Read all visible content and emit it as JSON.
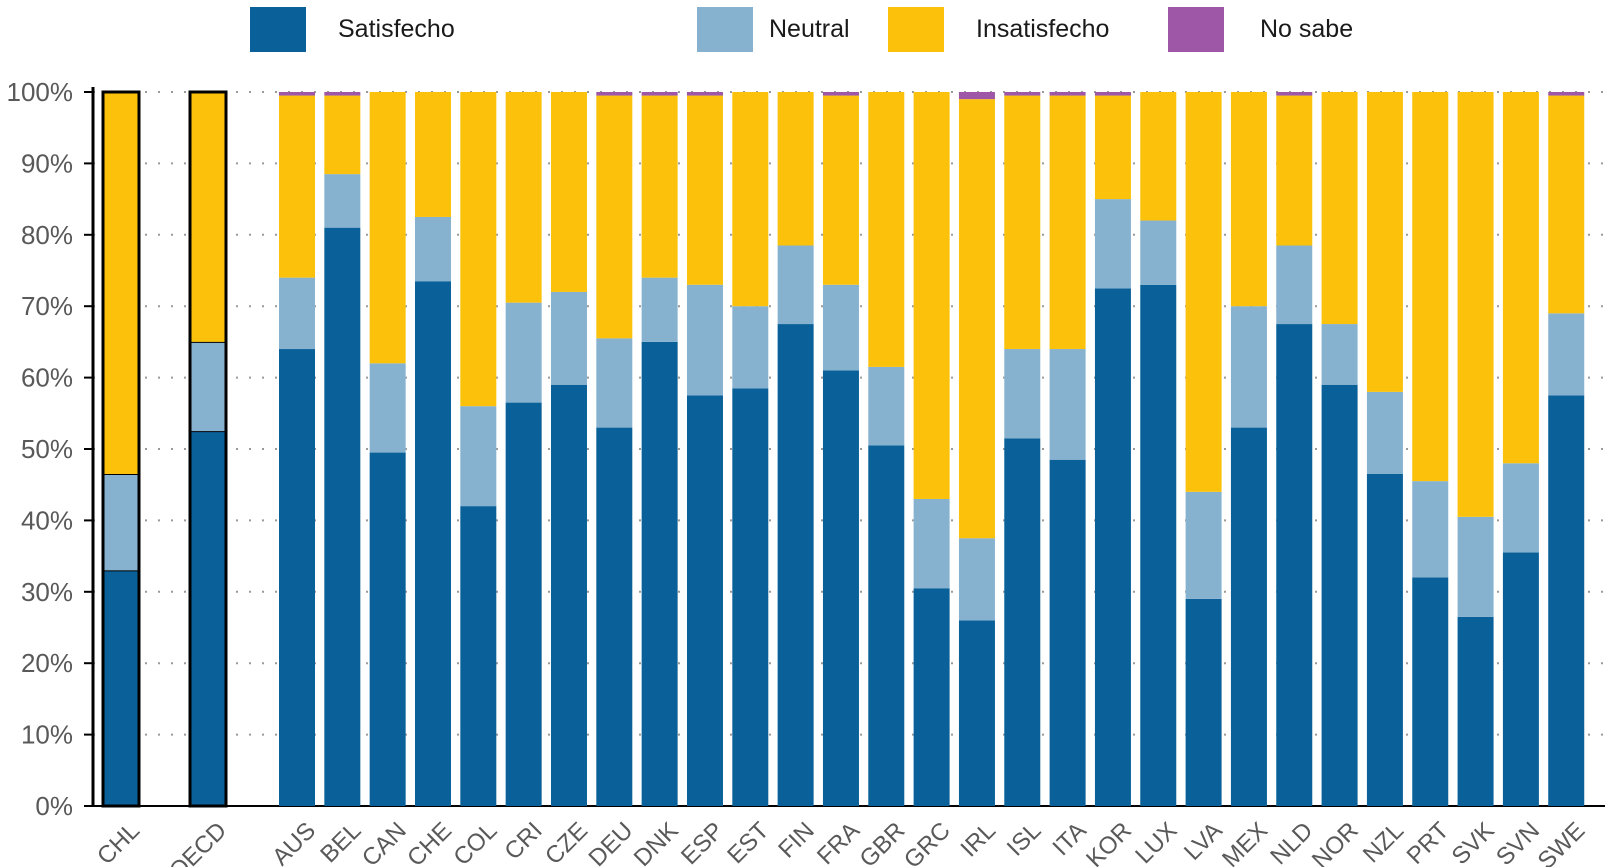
{
  "chart_data": {
    "type": "bar",
    "stacked": true,
    "normalized": true,
    "categories": [
      "CHL",
      "OECD",
      "AUS",
      "BEL",
      "CAN",
      "CHE",
      "COL",
      "CRI",
      "CZE",
      "DEU",
      "DNK",
      "ESP",
      "EST",
      "FIN",
      "FRA",
      "GBR",
      "GRC",
      "IRL",
      "ISL",
      "ITA",
      "KOR",
      "LUX",
      "LVA",
      "MEX",
      "NLD",
      "NOR",
      "NZL",
      "PRT",
      "SVK",
      "SVN",
      "SWE"
    ],
    "highlighted_categories": [
      "CHL",
      "OECD"
    ],
    "series": [
      {
        "name": "Satisfecho",
        "color": "#0a6199",
        "values": [
          33,
          52.5,
          64,
          81,
          49.5,
          73.5,
          42,
          56.5,
          59,
          53,
          65,
          57.5,
          58.5,
          67.5,
          61,
          50.5,
          30.5,
          26,
          51.5,
          48.5,
          72.5,
          73,
          29,
          53,
          67.5,
          59,
          46.5,
          32,
          26.5,
          35.5,
          57.5
        ]
      },
      {
        "name": "Neutral",
        "color": "#86b2d0",
        "values": [
          13.5,
          12.5,
          10,
          7.5,
          12.5,
          9,
          14,
          14,
          13,
          12.5,
          9,
          15.5,
          11.5,
          11,
          12,
          11,
          12.5,
          11.5,
          12.5,
          15.5,
          12.5,
          9,
          15,
          17,
          11,
          8.5,
          11.5,
          13.5,
          14,
          12.5,
          11.5
        ]
      },
      {
        "name": "Insatisfecho",
        "color": "#fcc20b",
        "values": [
          53.5,
          35,
          25.5,
          11,
          38,
          17.5,
          44,
          29.5,
          28,
          34,
          25.5,
          26.5,
          30,
          21.5,
          26.5,
          38.5,
          57,
          61.5,
          35.5,
          35.5,
          14.5,
          18,
          56,
          30,
          21,
          32.5,
          42,
          54.5,
          59.5,
          52,
          30.5
        ]
      },
      {
        "name": "No sabe",
        "color": "#9e56a6",
        "values": [
          0,
          0,
          0.5,
          0.5,
          0,
          0,
          0,
          0,
          0,
          0.5,
          0.5,
          0.5,
          0,
          0,
          0.5,
          0,
          0,
          1,
          0.5,
          0.5,
          0.5,
          0,
          0,
          0,
          0.5,
          0,
          0,
          0,
          0,
          0,
          0.5
        ]
      }
    ],
    "yticks": [
      "0%",
      "10%",
      "20%",
      "30%",
      "40%",
      "50%",
      "60%",
      "70%",
      "80%",
      "90%",
      "100%"
    ],
    "ylim": [
      0,
      100
    ],
    "grid": "horizontal-dotted",
    "legend_position": "top"
  }
}
